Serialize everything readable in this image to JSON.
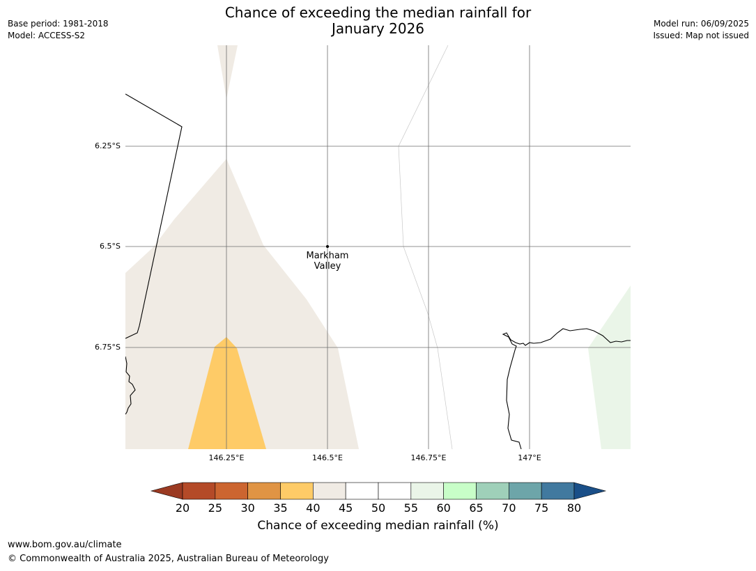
{
  "meta_left": {
    "base_period": "Base period: 1981-2018",
    "model": "Model: ACCESS-S2"
  },
  "meta_right": {
    "model_run": "Model run: 06/09/2025",
    "issued": "Issued: Map not issued"
  },
  "title": {
    "line1": "Chance of exceeding the median rainfall for",
    "line2": "January 2026"
  },
  "map": {
    "lat_ticks": [
      "6.25°S",
      "6.5°S",
      "6.75°S"
    ],
    "lon_ticks": [
      "146.25°E",
      "146.5°E",
      "146.75°E",
      "147°E"
    ],
    "place": {
      "line1": "Markham",
      "line2": "Valley"
    },
    "region_colors": {
      "band_40_45": "#f0ebe4",
      "band_35_40": "#fecb67",
      "band_55_60": "#eaf5e8"
    }
  },
  "colorbar": {
    "ticks": [
      "20",
      "25",
      "30",
      "35",
      "40",
      "45",
      "50",
      "55",
      "60",
      "65",
      "70",
      "75",
      "80"
    ],
    "colors": [
      "#9b3a22",
      "#b44a28",
      "#cc6530",
      "#e09444",
      "#fecb67",
      "#f0ebe4",
      "#ffffff",
      "#ffffff",
      "#eaf5e8",
      "#c8fec8",
      "#9fd0b9",
      "#6da5a9",
      "#41799f",
      "#1a4f88"
    ],
    "label": "Chance of exceeding median rainfall (%)"
  },
  "footer": {
    "url": "www.bom.gov.au/climate",
    "copyright": "© Commonwealth of Australia 2025, Australian Bureau of Meteorology"
  }
}
